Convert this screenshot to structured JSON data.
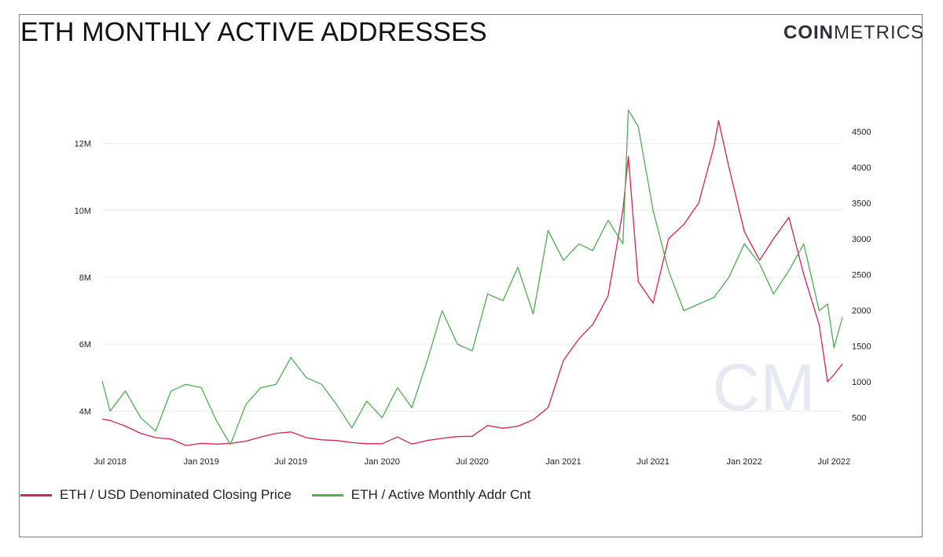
{
  "header": {
    "title": "ETH MONTHLY ACTIVE ADDRESSES",
    "brand_bold": "COIN",
    "brand_light": "METRICS"
  },
  "colors": {
    "price": "#d6224e",
    "active": "#4caf50",
    "grid": "#ececec",
    "watermark": "#e6e9f2"
  },
  "chart_data": {
    "type": "line",
    "title": "ETH MONTHLY ACTIVE ADDRESSES",
    "x_ticks": [
      "Jul 2018",
      "Jan 2019",
      "Jul 2019",
      "Jan 2020",
      "Jul 2020",
      "Jan 2021",
      "Jul 2021",
      "Jan 2022",
      "Jul 2022"
    ],
    "y_left_ticks": [
      "12M",
      "10M",
      "8M",
      "6M",
      "4M"
    ],
    "y_left_values": [
      12000000,
      10000000,
      8000000,
      6000000,
      4000000
    ],
    "y_left_lim": [
      2950000,
      13000000
    ],
    "y_right_ticks": [
      "4500",
      "4000",
      "3500",
      "3000",
      "2500",
      "2000",
      "1500",
      "1000",
      "500"
    ],
    "y_right_values": [
      4500,
      4000,
      3500,
      3000,
      2500,
      2000,
      1500,
      1000,
      500
    ],
    "y_right_lim": [
      100,
      4800
    ],
    "grid": true,
    "legend_position": "bottom-left",
    "series": [
      {
        "name": "ETH / USD Denominated Closing Price",
        "axis": "right",
        "x": [
          "2018-06-15",
          "2018-07-01",
          "2018-08-01",
          "2018-09-01",
          "2018-10-01",
          "2018-11-01",
          "2018-12-01",
          "2019-01-01",
          "2019-02-01",
          "2019-03-01",
          "2019-04-01",
          "2019-05-01",
          "2019-06-01",
          "2019-07-01",
          "2019-08-01",
          "2019-09-01",
          "2019-10-01",
          "2019-11-01",
          "2019-12-01",
          "2020-01-01",
          "2020-02-01",
          "2020-03-01",
          "2020-04-01",
          "2020-05-01",
          "2020-06-01",
          "2020-07-01",
          "2020-08-01",
          "2020-09-01",
          "2020-10-01",
          "2020-11-01",
          "2020-12-01",
          "2021-01-01",
          "2021-02-01",
          "2021-03-01",
          "2021-04-01",
          "2021-05-01",
          "2021-05-12",
          "2021-06-01",
          "2021-07-01",
          "2021-08-01",
          "2021-09-01",
          "2021-10-01",
          "2021-11-01",
          "2021-11-10",
          "2021-12-01",
          "2022-01-01",
          "2022-02-01",
          "2022-03-01",
          "2022-04-01",
          "2022-05-01",
          "2022-06-01",
          "2022-06-18",
          "2022-07-01",
          "2022-07-18"
        ],
        "values": [
          480,
          460,
          380,
          280,
          220,
          200,
          110,
          140,
          130,
          140,
          170,
          230,
          280,
          300,
          220,
          190,
          180,
          150,
          135,
          135,
          230,
          130,
          180,
          210,
          235,
          240,
          390,
          350,
          380,
          470,
          640,
          1300,
          1600,
          1800,
          2200,
          3400,
          4150,
          2400,
          2100,
          3000,
          3200,
          3500,
          4300,
          4650,
          4000,
          3100,
          2700,
          3000,
          3300,
          2500,
          1800,
          1000,
          1100,
          1250
        ]
      },
      {
        "name": "ETH / Active Monthly Addr Cnt",
        "axis": "left",
        "x": [
          "2018-06-15",
          "2018-07-01",
          "2018-08-01",
          "2018-09-01",
          "2018-10-01",
          "2018-11-01",
          "2018-12-01",
          "2019-01-01",
          "2019-02-01",
          "2019-03-01",
          "2019-04-01",
          "2019-05-01",
          "2019-06-01",
          "2019-07-01",
          "2019-08-01",
          "2019-09-01",
          "2019-10-01",
          "2019-11-01",
          "2019-12-01",
          "2020-01-01",
          "2020-02-01",
          "2020-03-01",
          "2020-04-01",
          "2020-05-01",
          "2020-06-01",
          "2020-07-01",
          "2020-08-01",
          "2020-09-01",
          "2020-10-01",
          "2020-11-01",
          "2020-12-01",
          "2021-01-01",
          "2021-02-01",
          "2021-03-01",
          "2021-04-01",
          "2021-05-01",
          "2021-05-12",
          "2021-06-01",
          "2021-07-01",
          "2021-08-01",
          "2021-09-01",
          "2021-10-01",
          "2021-11-01",
          "2021-12-01",
          "2022-01-01",
          "2022-02-01",
          "2022-03-01",
          "2022-04-01",
          "2022-05-01",
          "2022-06-01",
          "2022-06-18",
          "2022-07-01",
          "2022-07-18"
        ],
        "values": [
          4900000,
          4000000,
          4600000,
          3800000,
          3400000,
          4600000,
          4800000,
          4700000,
          3700000,
          3000000,
          4200000,
          4700000,
          4800000,
          5600000,
          5000000,
          4800000,
          4200000,
          3500000,
          4300000,
          3800000,
          4700000,
          4100000,
          5500000,
          7000000,
          6000000,
          5800000,
          7500000,
          7300000,
          8300000,
          6900000,
          9400000,
          8500000,
          9000000,
          8800000,
          9700000,
          9000000,
          13000000,
          12500000,
          10000000,
          8200000,
          7000000,
          7200000,
          7400000,
          8000000,
          9000000,
          8400000,
          7500000,
          8200000,
          9000000,
          7000000,
          7200000,
          5900000,
          6800000
        ]
      }
    ]
  },
  "legend": {
    "price_label": "ETH / USD Denominated Closing Price",
    "active_label": "ETH / Active Monthly Addr Cnt"
  }
}
